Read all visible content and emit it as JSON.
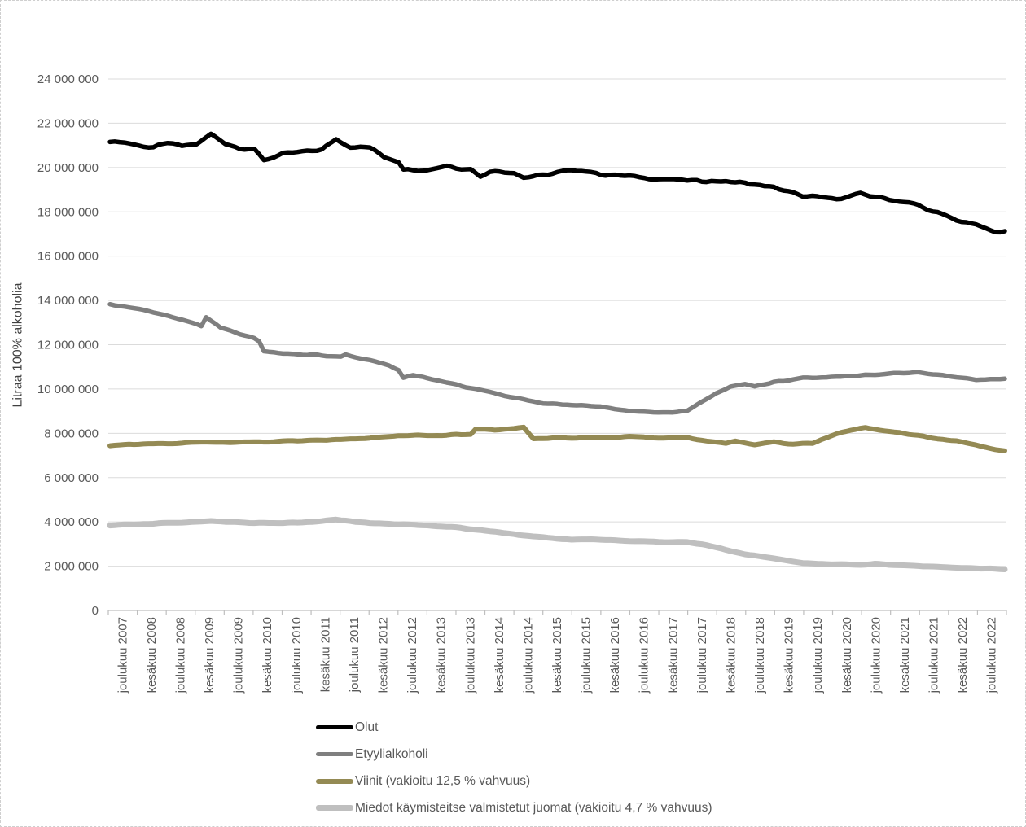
{
  "chart_data": {
    "type": "line",
    "title": "",
    "ylabel": "Litraa 100% alkoholia",
    "unit": "litraa 100% alkoholia",
    "ylim": [
      0,
      24000000
    ],
    "y_tick_interval": 2000000,
    "y_tick_labels": [
      "0",
      "2 000 000",
      "4 000 000",
      "6 000 000",
      "8 000 000",
      "10 000 000",
      "12 000 000",
      "14 000 000",
      "16 000 000",
      "18 000 000",
      "20 000 000",
      "22 000 000",
      "24 000 000"
    ],
    "x_tick_labels": [
      "joulukuu 2007",
      "kesäkuu 2008",
      "joulukuu 2008",
      "kesäkuu 2009",
      "joulukuu 2009",
      "kesäkuu 2010",
      "joulukuu 2010",
      "kesäkuu 2011",
      "joulukuu 2011",
      "kesäkuu 2012",
      "joulukuu 2012",
      "kesäkuu 2013",
      "joulukuu 2013",
      "kesäkuu 2014",
      "joulukuu 2014",
      "kesäkuu 2015",
      "joulukuu 2015",
      "kesäkuu 2016",
      "joulukuu 2016",
      "kesäkuu 2017",
      "joulukuu 2017",
      "kesäkuu 2018",
      "joulukuu 2018",
      "kesäkuu 2019",
      "joulukuu 2019",
      "kesäkuu 2020",
      "joulukuu 2020",
      "kesäkuu 2021",
      "joulukuu 2021",
      "kesäkuu 2022",
      "joulukuu 2022"
    ],
    "x_unit": "months since joulukuu 2007",
    "x_range_months": [
      0,
      186
    ],
    "x_label_interval_months": 6,
    "grid": true,
    "legend_position": "bottom-left",
    "colors": {
      "axis": "#BFBFBF",
      "grid": "#DBDBDB",
      "tick_text": "#595959",
      "axis_title_text": "#404040"
    },
    "series": [
      {
        "name": "Olut",
        "color": "#000000",
        "points_month_litres": [
          [
            0,
            21200000
          ],
          [
            3,
            21150000
          ],
          [
            6,
            21000000
          ],
          [
            9,
            20900000
          ],
          [
            12,
            21100000
          ],
          [
            15,
            20950000
          ],
          [
            18,
            21050000
          ],
          [
            21,
            21500000
          ],
          [
            24,
            21100000
          ],
          [
            27,
            20900000
          ],
          [
            30,
            20800000
          ],
          [
            32,
            20350000
          ],
          [
            36,
            20600000
          ],
          [
            40,
            20700000
          ],
          [
            44,
            20800000
          ],
          [
            47,
            21300000
          ],
          [
            50,
            20950000
          ],
          [
            54,
            20900000
          ],
          [
            57,
            20500000
          ],
          [
            60,
            20300000
          ],
          [
            61,
            19950000
          ],
          [
            66,
            19900000
          ],
          [
            70,
            20100000
          ],
          [
            72,
            20000000
          ],
          [
            75,
            19950000
          ],
          [
            77,
            19600000
          ],
          [
            79,
            19850000
          ],
          [
            84,
            19800000
          ],
          [
            86,
            19550000
          ],
          [
            90,
            19650000
          ],
          [
            94,
            19800000
          ],
          [
            98,
            19900000
          ],
          [
            102,
            19700000
          ],
          [
            108,
            19600000
          ],
          [
            114,
            19500000
          ],
          [
            120,
            19400000
          ],
          [
            126,
            19400000
          ],
          [
            132,
            19300000
          ],
          [
            138,
            19100000
          ],
          [
            141,
            18900000
          ],
          [
            144,
            18700000
          ],
          [
            150,
            18600000
          ],
          [
            153,
            18650000
          ],
          [
            156,
            18800000
          ],
          [
            160,
            18650000
          ],
          [
            165,
            18450000
          ],
          [
            168,
            18300000
          ],
          [
            171,
            18000000
          ],
          [
            174,
            17800000
          ],
          [
            177,
            17550000
          ],
          [
            180,
            17400000
          ],
          [
            183,
            17150000
          ],
          [
            186,
            17100000
          ]
        ]
      },
      {
        "name": "Etyylialkoholi",
        "color": "#7F7F7F",
        "points_month_litres": [
          [
            0,
            13850000
          ],
          [
            6,
            13600000
          ],
          [
            12,
            13300000
          ],
          [
            18,
            12950000
          ],
          [
            19,
            12850000
          ],
          [
            20,
            13250000
          ],
          [
            23,
            12750000
          ],
          [
            24,
            12700000
          ],
          [
            27,
            12500000
          ],
          [
            30,
            12300000
          ],
          [
            31,
            12150000
          ],
          [
            32,
            11700000
          ],
          [
            36,
            11600000
          ],
          [
            42,
            11550000
          ],
          [
            48,
            11450000
          ],
          [
            49,
            11550000
          ],
          [
            54,
            11300000
          ],
          [
            58,
            11050000
          ],
          [
            60,
            10850000
          ],
          [
            61,
            10500000
          ],
          [
            63,
            10650000
          ],
          [
            66,
            10500000
          ],
          [
            72,
            10200000
          ],
          [
            78,
            9900000
          ],
          [
            84,
            9600000
          ],
          [
            90,
            9350000
          ],
          [
            96,
            9250000
          ],
          [
            102,
            9200000
          ],
          [
            108,
            9000000
          ],
          [
            114,
            8950000
          ],
          [
            120,
            9000000
          ],
          [
            123,
            9400000
          ],
          [
            126,
            9800000
          ],
          [
            129,
            10100000
          ],
          [
            132,
            10200000
          ],
          [
            134,
            10100000
          ],
          [
            138,
            10300000
          ],
          [
            144,
            10500000
          ],
          [
            150,
            10550000
          ],
          [
            156,
            10600000
          ],
          [
            162,
            10700000
          ],
          [
            168,
            10750000
          ],
          [
            174,
            10600000
          ],
          [
            180,
            10400000
          ],
          [
            183,
            10450000
          ],
          [
            186,
            10500000
          ]
        ]
      },
      {
        "name": "Viinit (vakioitu 12,5 % vahvuus)",
        "color": "#948A54",
        "points_month_litres": [
          [
            0,
            7450000
          ],
          [
            6,
            7500000
          ],
          [
            12,
            7550000
          ],
          [
            18,
            7600000
          ],
          [
            24,
            7600000
          ],
          [
            30,
            7600000
          ],
          [
            36,
            7650000
          ],
          [
            42,
            7700000
          ],
          [
            48,
            7700000
          ],
          [
            54,
            7800000
          ],
          [
            60,
            7900000
          ],
          [
            66,
            7900000
          ],
          [
            72,
            7950000
          ],
          [
            75,
            7950000
          ],
          [
            76,
            8200000
          ],
          [
            80,
            8150000
          ],
          [
            84,
            8200000
          ],
          [
            86,
            8250000
          ],
          [
            88,
            7750000
          ],
          [
            92,
            7800000
          ],
          [
            96,
            7800000
          ],
          [
            102,
            7800000
          ],
          [
            108,
            7850000
          ],
          [
            114,
            7800000
          ],
          [
            120,
            7800000
          ],
          [
            124,
            7650000
          ],
          [
            128,
            7550000
          ],
          [
            130,
            7650000
          ],
          [
            134,
            7500000
          ],
          [
            138,
            7600000
          ],
          [
            142,
            7500000
          ],
          [
            146,
            7550000
          ],
          [
            150,
            7900000
          ],
          [
            154,
            8150000
          ],
          [
            157,
            8250000
          ],
          [
            160,
            8150000
          ],
          [
            164,
            8050000
          ],
          [
            168,
            7900000
          ],
          [
            172,
            7750000
          ],
          [
            176,
            7650000
          ],
          [
            180,
            7450000
          ],
          [
            184,
            7250000
          ],
          [
            186,
            7200000
          ]
        ]
      },
      {
        "name": "Miedot käymisteitse valmistetut juomat (vakioitu 4,7 % vahvuus)",
        "color": "#BFBFBF",
        "points_month_litres": [
          [
            0,
            3850000
          ],
          [
            6,
            3900000
          ],
          [
            12,
            3950000
          ],
          [
            18,
            4000000
          ],
          [
            21,
            4050000
          ],
          [
            24,
            4000000
          ],
          [
            30,
            3950000
          ],
          [
            36,
            3950000
          ],
          [
            42,
            4000000
          ],
          [
            47,
            4100000
          ],
          [
            51,
            4000000
          ],
          [
            54,
            3950000
          ],
          [
            60,
            3900000
          ],
          [
            66,
            3850000
          ],
          [
            72,
            3750000
          ],
          [
            78,
            3600000
          ],
          [
            84,
            3450000
          ],
          [
            90,
            3300000
          ],
          [
            96,
            3200000
          ],
          [
            102,
            3200000
          ],
          [
            108,
            3150000
          ],
          [
            114,
            3100000
          ],
          [
            120,
            3100000
          ],
          [
            123,
            3000000
          ],
          [
            126,
            2850000
          ],
          [
            129,
            2700000
          ],
          [
            132,
            2550000
          ],
          [
            138,
            2350000
          ],
          [
            144,
            2150000
          ],
          [
            150,
            2100000
          ],
          [
            156,
            2050000
          ],
          [
            159,
            2100000
          ],
          [
            162,
            2050000
          ],
          [
            168,
            2000000
          ],
          [
            174,
            1950000
          ],
          [
            180,
            1900000
          ],
          [
            186,
            1850000
          ]
        ]
      }
    ]
  }
}
